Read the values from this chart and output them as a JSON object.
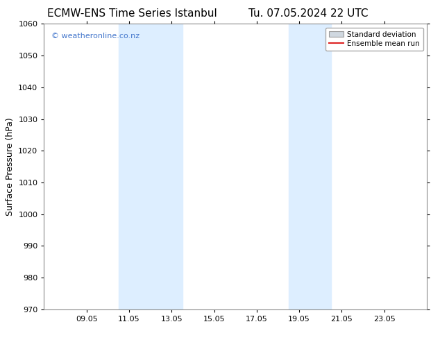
{
  "title_left": "ECMW-ENS Time Series Istanbul",
  "title_right": "Tu. 07.05.2024 22 UTC",
  "ylabel": "Surface Pressure (hPa)",
  "ylim": [
    970,
    1060
  ],
  "yticks": [
    970,
    980,
    990,
    1000,
    1010,
    1020,
    1030,
    1040,
    1050,
    1060
  ],
  "xtick_labels": [
    "09.05",
    "11.05",
    "13.05",
    "15.05",
    "17.05",
    "19.05",
    "21.05",
    "23.05"
  ],
  "xtick_positions": [
    2,
    4,
    6,
    8,
    10,
    12,
    14,
    16
  ],
  "xlim": [
    0,
    18
  ],
  "shade_regions": [
    {
      "start": 3.5,
      "end": 6.5
    },
    {
      "start": 11.5,
      "end": 13.5
    }
  ],
  "shade_color": "#ddeeff",
  "grid_color": "#cccccc",
  "watermark": "© weatheronline.co.nz",
  "watermark_color": "#4477cc",
  "legend_std_dev_color": "#d0d8e0",
  "legend_mean_color": "#dd2222",
  "bg_color": "#ffffff",
  "title_fontsize": 11,
  "axis_label_fontsize": 9,
  "tick_fontsize": 8,
  "watermark_fontsize": 8
}
